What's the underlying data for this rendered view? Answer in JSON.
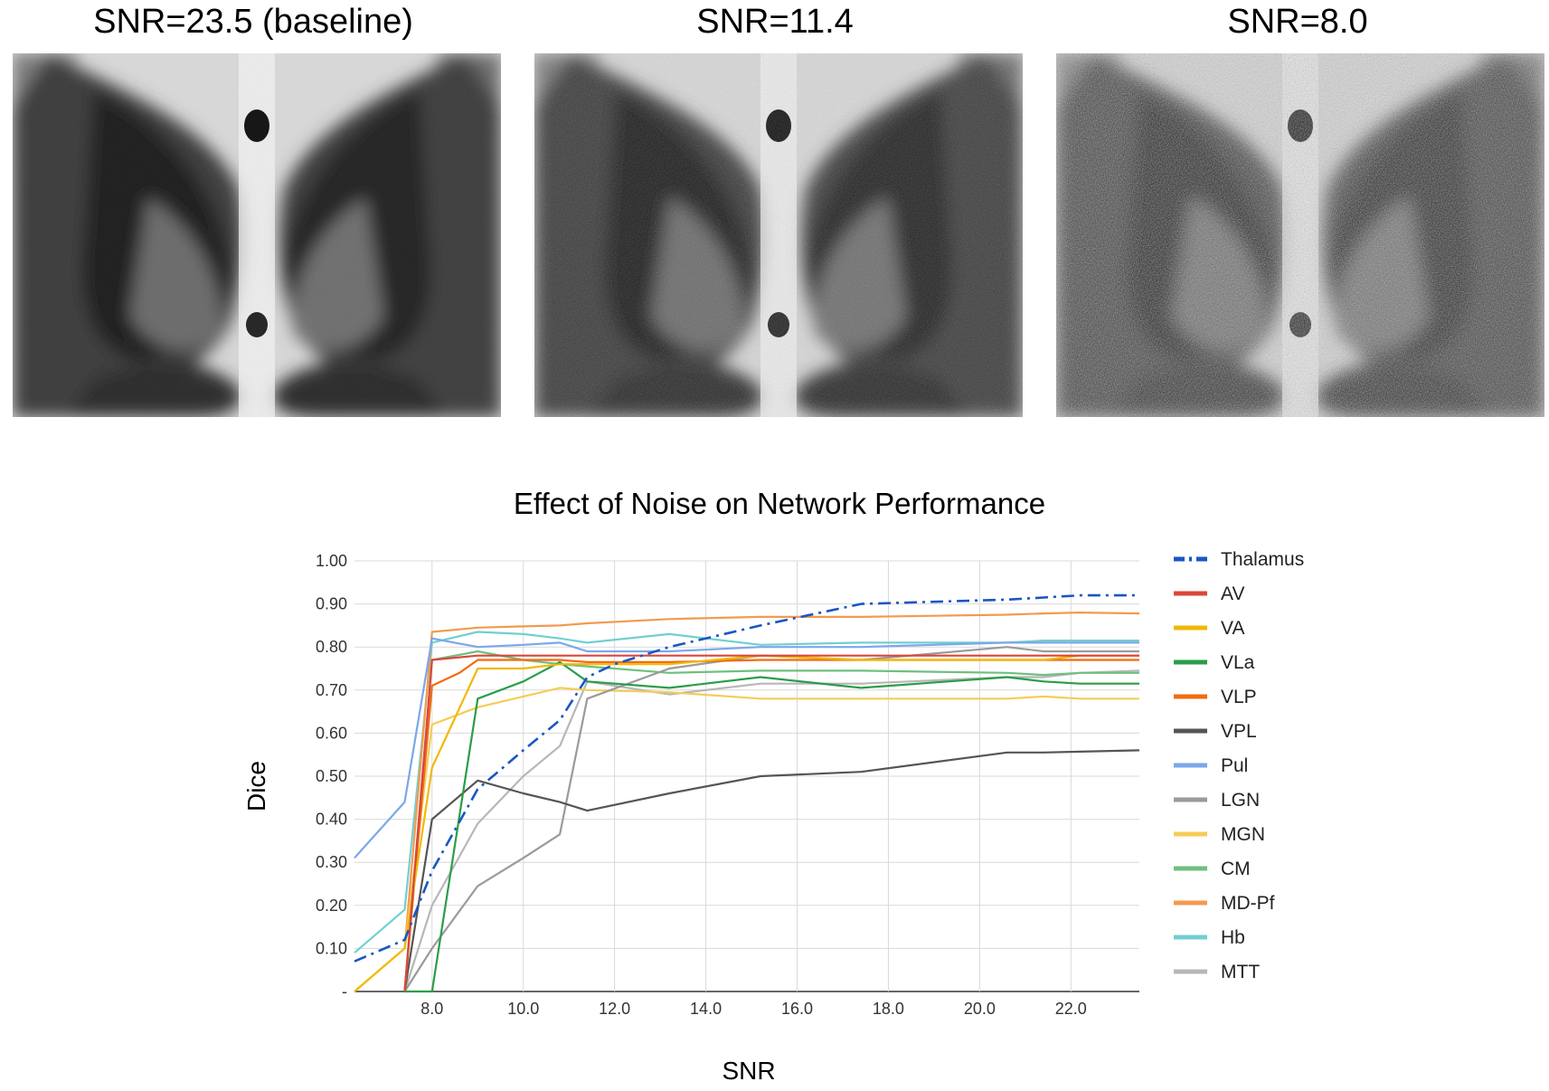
{
  "panels": [
    {
      "title": "SNR=23.5 (baseline)",
      "noise": 0.02
    },
    {
      "title": "SNR=11.4",
      "noise": 0.08
    },
    {
      "title": "SNR=8.0",
      "noise": 0.2
    }
  ],
  "chart_data": {
    "type": "line",
    "title": "Effect of Noise on Network Performance",
    "xlabel": "SNR",
    "ylabel": "Dice",
    "xlim": [
      6.3,
      23.5
    ],
    "ylim": [
      0,
      1.0
    ],
    "x_ticks": [
      "8.0",
      "10.0",
      "12.0",
      "14.0",
      "16.0",
      "18.0",
      "20.0",
      "22.0"
    ],
    "y_ticks": [
      "-",
      "0.10",
      "0.20",
      "0.30",
      "0.40",
      "0.50",
      "0.60",
      "0.70",
      "0.80",
      "0.90",
      "1.00"
    ],
    "grid": true,
    "legend_position": "right",
    "series": [
      {
        "name": "Thalamus",
        "color": "#1a56c4",
        "dash": "dashdot",
        "x": [
          6.3,
          7.4,
          8.0,
          9.0,
          10.0,
          10.8,
          11.4,
          12.0,
          13.2,
          15.2,
          17.4,
          20.6,
          21.4,
          22.2,
          23.5
        ],
        "y": [
          0.07,
          0.12,
          0.28,
          0.47,
          0.56,
          0.63,
          0.73,
          0.76,
          0.8,
          0.85,
          0.9,
          0.91,
          0.915,
          0.92,
          0.92
        ]
      },
      {
        "name": "AV",
        "color": "#d9473b",
        "dash": "solid",
        "x": [
          7.4,
          8.0,
          9.0,
          10.0,
          10.8,
          11.4,
          13.2,
          15.2,
          17.4,
          20.6,
          21.4,
          22.2,
          23.5
        ],
        "y": [
          0,
          0.77,
          0.78,
          0.78,
          0.78,
          0.78,
          0.78,
          0.78,
          0.78,
          0.78,
          0.78,
          0.78,
          0.78
        ]
      },
      {
        "name": "VA",
        "color": "#f2b807",
        "dash": "solid",
        "x": [
          6.3,
          7.4,
          8.0,
          9.0,
          10.0,
          10.8,
          11.4,
          13.2,
          15.2,
          17.4,
          20.6,
          21.4,
          22.2,
          23.5
        ],
        "y": [
          0,
          0.1,
          0.52,
          0.75,
          0.75,
          0.76,
          0.76,
          0.76,
          0.78,
          0.77,
          0.77,
          0.77,
          0.78,
          0.78
        ]
      },
      {
        "name": "VLa",
        "color": "#2a9d48",
        "dash": "solid",
        "x": [
          7.4,
          8.0,
          9.0,
          10.0,
          10.8,
          11.4,
          13.2,
          15.2,
          17.4,
          20.6,
          21.4,
          22.2,
          23.5
        ],
        "y": [
          0,
          0,
          0.68,
          0.72,
          0.765,
          0.72,
          0.705,
          0.73,
          0.705,
          0.73,
          0.72,
          0.715,
          0.715
        ]
      },
      {
        "name": "VLP",
        "color": "#f26b0f",
        "dash": "solid",
        "x": [
          7.4,
          8.0,
          8.6,
          9.0,
          10.0,
          10.8,
          11.4,
          13.2,
          15.2,
          17.4,
          20.6,
          21.4,
          22.2,
          23.5
        ],
        "y": [
          0,
          0.71,
          0.74,
          0.77,
          0.77,
          0.77,
          0.765,
          0.765,
          0.77,
          0.77,
          0.77,
          0.77,
          0.77,
          0.77
        ]
      },
      {
        "name": "VPL",
        "color": "#555555",
        "dash": "solid",
        "x": [
          7.4,
          8.0,
          9.0,
          10.0,
          10.8,
          11.4,
          13.2,
          15.2,
          17.4,
          20.6,
          21.4,
          22.2,
          23.5
        ],
        "y": [
          0,
          0.4,
          0.49,
          0.46,
          0.44,
          0.42,
          0.46,
          0.5,
          0.51,
          0.555,
          0.555,
          0.557,
          0.56
        ]
      },
      {
        "name": "Pul",
        "color": "#7ba7ea",
        "dash": "solid",
        "x": [
          6.3,
          7.4,
          8.0,
          9.0,
          10.0,
          10.8,
          11.4,
          13.2,
          15.2,
          17.4,
          20.6,
          21.4,
          22.2,
          23.5
        ],
        "y": [
          0.31,
          0.44,
          0.82,
          0.8,
          0.805,
          0.81,
          0.79,
          0.79,
          0.8,
          0.8,
          0.81,
          0.81,
          0.81,
          0.81
        ]
      },
      {
        "name": "LGN",
        "color": "#9a9a9a",
        "dash": "solid",
        "x": [
          7.4,
          8.0,
          9.0,
          10.0,
          10.8,
          11.4,
          13.2,
          15.2,
          17.4,
          20.6,
          21.4,
          22.2,
          23.5
        ],
        "y": [
          0,
          0.1,
          0.245,
          0.31,
          0.365,
          0.68,
          0.75,
          0.78,
          0.77,
          0.8,
          0.79,
          0.79,
          0.79
        ]
      },
      {
        "name": "MGN",
        "color": "#f5cc57",
        "dash": "solid",
        "x": [
          6.3,
          7.4,
          8.0,
          9.0,
          10.0,
          10.8,
          11.4,
          13.2,
          15.2,
          17.4,
          20.6,
          21.4,
          22.2,
          23.5
        ],
        "y": [
          0,
          0.1,
          0.62,
          0.66,
          0.685,
          0.705,
          0.7,
          0.695,
          0.68,
          0.68,
          0.68,
          0.685,
          0.68,
          0.68
        ]
      },
      {
        "name": "CM",
        "color": "#6fbf7f",
        "dash": "solid",
        "x": [
          7.4,
          8.0,
          9.0,
          10.0,
          10.8,
          11.4,
          13.2,
          15.2,
          17.4,
          20.6,
          21.4,
          22.2,
          23.5
        ],
        "y": [
          0,
          0.77,
          0.79,
          0.77,
          0.76,
          0.755,
          0.74,
          0.745,
          0.745,
          0.74,
          0.735,
          0.74,
          0.74
        ]
      },
      {
        "name": "MD-Pf",
        "color": "#f39a4f",
        "dash": "solid",
        "x": [
          7.4,
          8.0,
          9.0,
          10.0,
          10.8,
          11.4,
          13.2,
          15.2,
          17.4,
          20.6,
          21.4,
          22.2,
          23.5
        ],
        "y": [
          0.1,
          0.835,
          0.845,
          0.848,
          0.85,
          0.855,
          0.865,
          0.87,
          0.87,
          0.875,
          0.878,
          0.88,
          0.878
        ]
      },
      {
        "name": "Hb",
        "color": "#72cfd0",
        "dash": "solid",
        "x": [
          6.3,
          7.4,
          8.0,
          9.0,
          10.0,
          10.8,
          11.4,
          13.2,
          15.2,
          17.4,
          20.6,
          21.4,
          22.2,
          23.5
        ],
        "y": [
          0.09,
          0.19,
          0.81,
          0.835,
          0.83,
          0.82,
          0.81,
          0.83,
          0.805,
          0.81,
          0.81,
          0.815,
          0.815,
          0.815
        ]
      },
      {
        "name": "MTT",
        "color": "#b7b7b7",
        "dash": "solid",
        "x": [
          7.4,
          8.0,
          9.0,
          10.0,
          10.8,
          11.4,
          13.2,
          15.2,
          17.4,
          20.6,
          21.4,
          22.2,
          23.5
        ],
        "y": [
          0,
          0.2,
          0.39,
          0.5,
          0.57,
          0.72,
          0.69,
          0.715,
          0.715,
          0.73,
          0.73,
          0.74,
          0.745
        ]
      }
    ]
  }
}
